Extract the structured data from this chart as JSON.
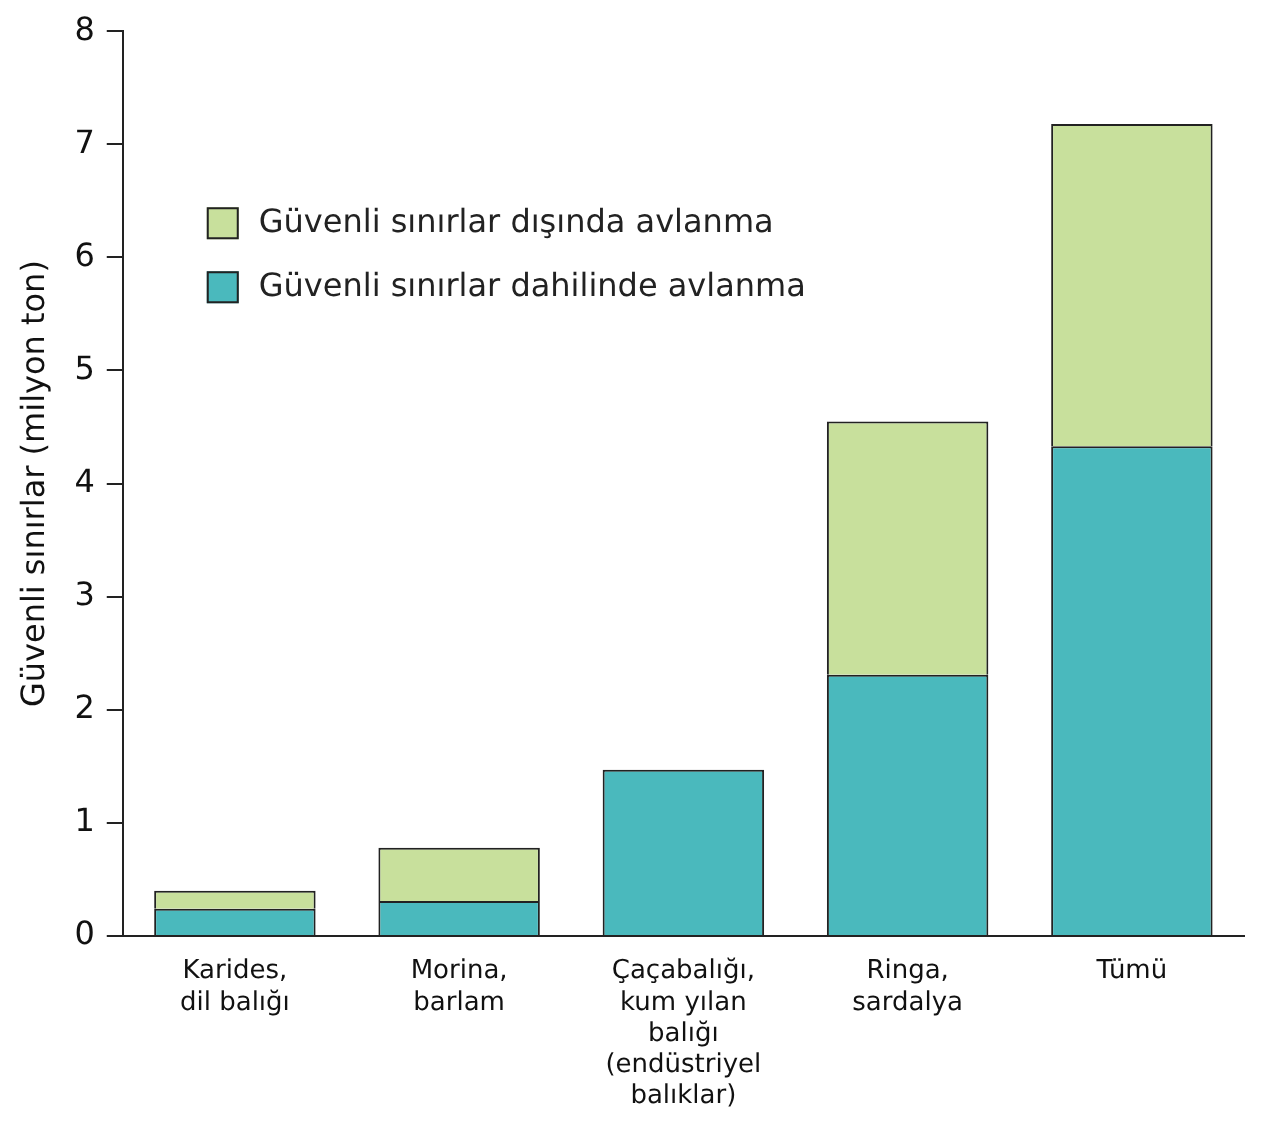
{
  "chart_data": {
    "type": "bar",
    "ylabel": "Güvenli sınırlar (milyon ton)",
    "categories": [
      "Karides, dil balığı",
      "Morina, barlam",
      "Çaçabalığı, kum yılan balığı (endüstriyel balıklar)",
      "Ringa, sardalya",
      "Tümü"
    ],
    "stacked": true,
    "series": [
      {
        "name": "Güvenli sınırlar dahilinde avlanma",
        "color": "#4ab9bd",
        "values": [
          0.24,
          0.31,
          1.47,
          2.31,
          4.33
        ]
      },
      {
        "name": "Güvenli sınırlar dışında avlanma",
        "color": "#c8e09c",
        "values": [
          0.16,
          0.47,
          0,
          2.24,
          2.85
        ]
      }
    ],
    "ylim": [
      0,
      8
    ],
    "yticks": [
      0,
      1,
      2,
      3,
      4,
      5,
      6,
      7,
      8
    ],
    "grid": false,
    "legend": "top left"
  }
}
